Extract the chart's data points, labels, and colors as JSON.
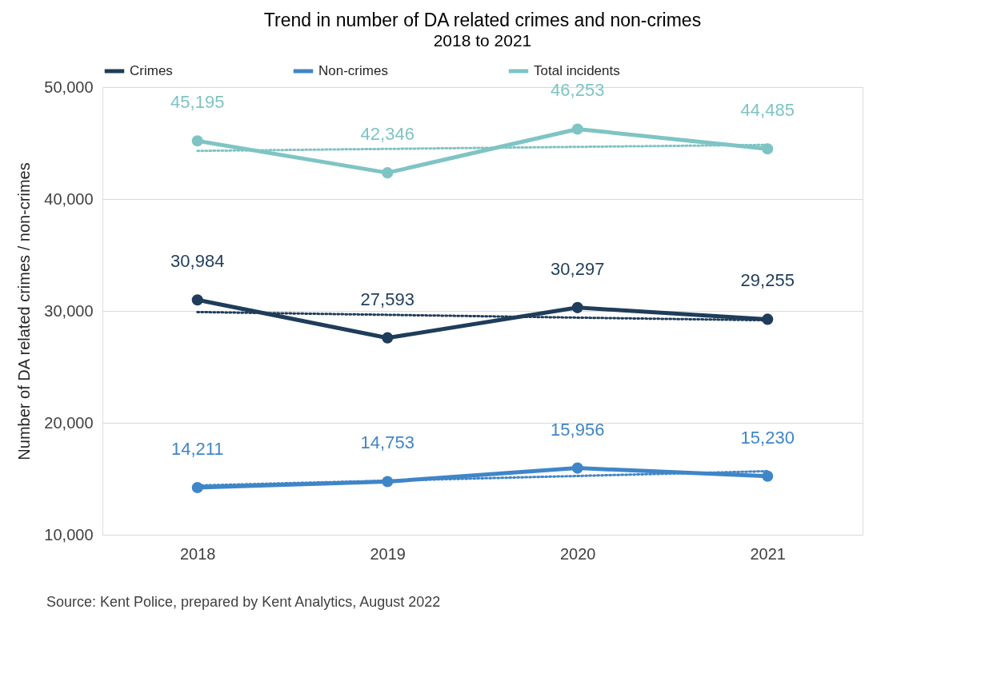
{
  "chart_data": {
    "type": "line",
    "title": "Trend in number of DA related crimes and non-crimes",
    "subtitle": "2018 to 2021",
    "ylabel": "Number of DA related crimes / non-crimes",
    "categories": [
      "2018",
      "2019",
      "2020",
      "2021"
    ],
    "series": [
      {
        "name": "Crimes",
        "color": "#1f3d5a",
        "values": [
          30984,
          27593,
          30297,
          29255
        ],
        "value_labels": [
          "30,984",
          "27,593",
          "30,297",
          "29,255"
        ],
        "marker": "circle",
        "line_style": "solid"
      },
      {
        "name": "Non-crimes",
        "color": "#3f86c8",
        "values": [
          14211,
          14753,
          15956,
          15230
        ],
        "value_labels": [
          "14,211",
          "14,753",
          "15,956",
          "15,230"
        ],
        "marker": "circle",
        "line_style": "solid"
      },
      {
        "name": "Total incidents",
        "color": "#7fc4c4",
        "values": [
          45195,
          42346,
          46253,
          44485
        ],
        "value_labels": [
          "45,195",
          "42,346",
          "46,253",
          "44,485"
        ],
        "marker": "circle",
        "line_style": "solid"
      },
      {
        "color": "#1f3d5a",
        "values": [
          29900,
          29650,
          29400,
          29160
        ],
        "marker": "none",
        "line_style": "dotted"
      },
      {
        "color": "#3f86c8",
        "values": [
          14400,
          14830,
          15250,
          15680
        ],
        "marker": "none",
        "line_style": "dotted"
      },
      {
        "color": "#7fc4c4",
        "values": [
          44300,
          44480,
          44660,
          44840
        ],
        "marker": "none",
        "line_style": "dotted"
      }
    ],
    "ylim": [
      10000,
      50000
    ],
    "yticks": [
      {
        "value": 10000,
        "label": "10,000"
      },
      {
        "value": 20000,
        "label": "20,000"
      },
      {
        "value": 30000,
        "label": "30,000"
      },
      {
        "value": 40000,
        "label": "40,000"
      },
      {
        "value": 50000,
        "label": "50,000"
      }
    ],
    "grid": "y",
    "legend": "top",
    "annotations": [
      "Source: Kent Police, prepared by Kent Analytics, August 2022"
    ]
  }
}
